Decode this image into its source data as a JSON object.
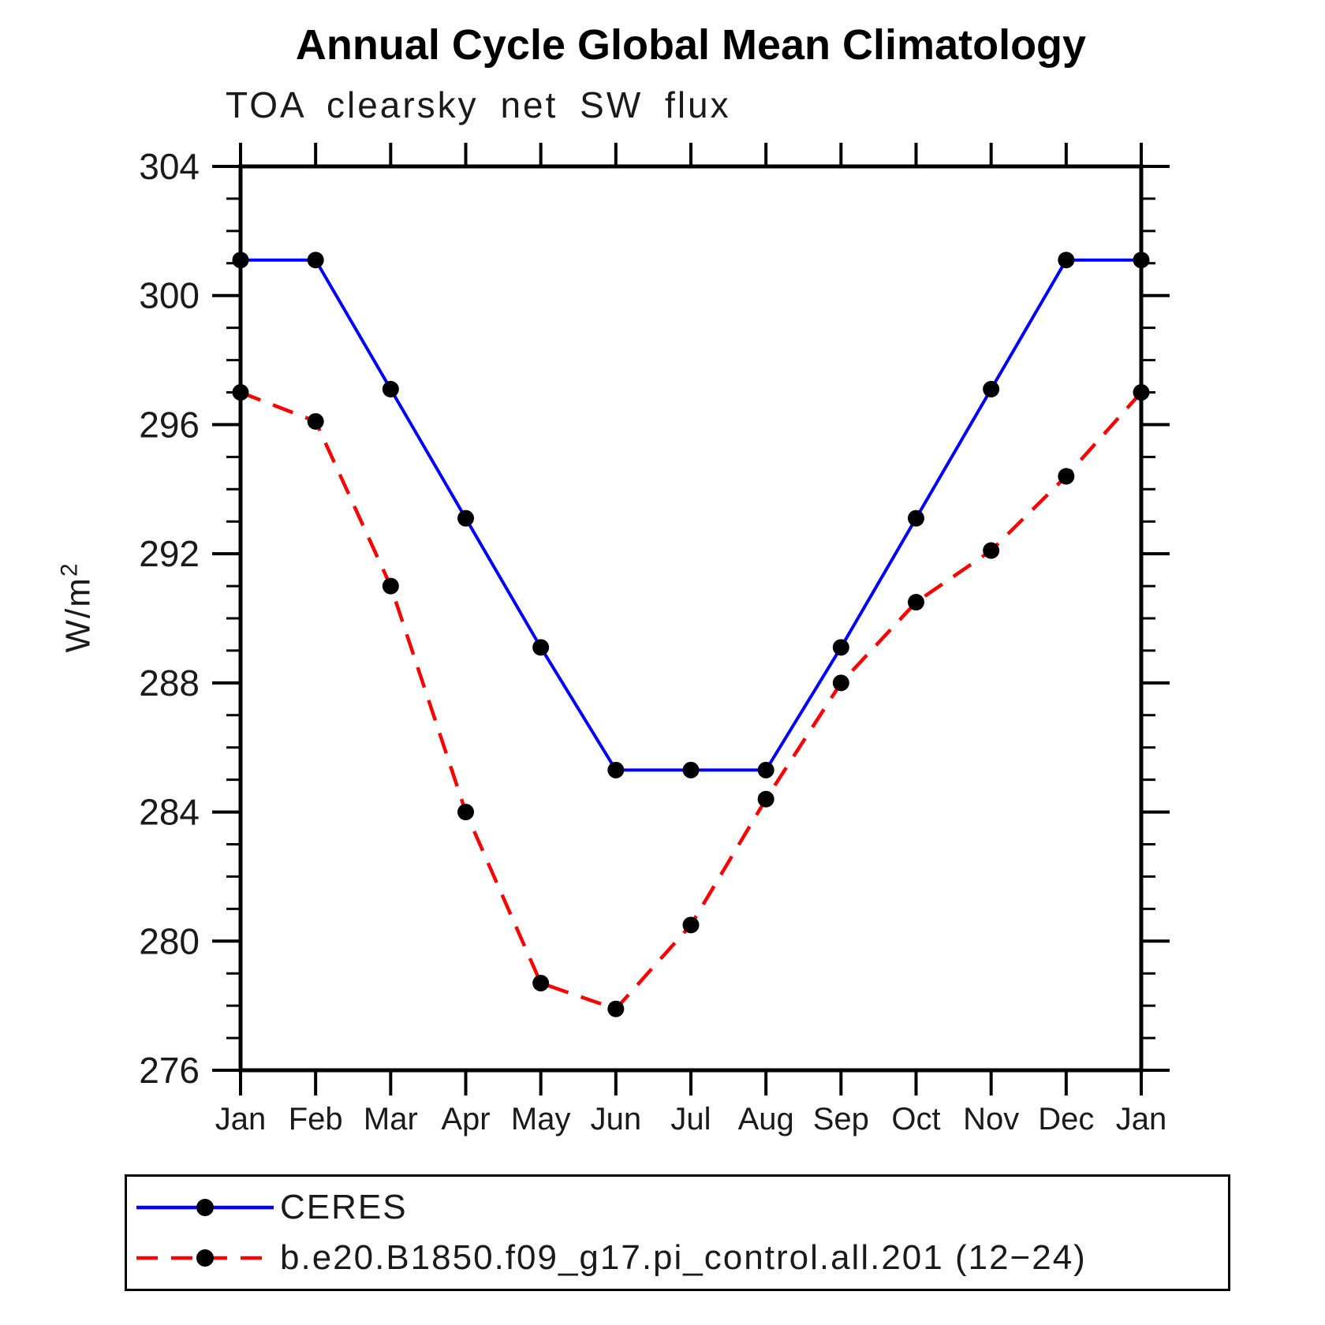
{
  "page": {
    "background": "#ffffff"
  },
  "chart_data": {
    "type": "line",
    "title": "Annual Cycle Global Mean Climatology",
    "subtitle": "TOA clearsky net SW flux",
    "ylabel": "W/m²",
    "ylabel_base": "W/m",
    "ylabel_exponent": "2",
    "xlabel": "",
    "x_categories": [
      "Jan",
      "Feb",
      "Mar",
      "Apr",
      "May",
      "Jun",
      "Jul",
      "Aug",
      "Sep",
      "Oct",
      "Nov",
      "Dec",
      "Jan"
    ],
    "ylim": [
      276,
      304
    ],
    "yticks": [
      276,
      280,
      284,
      288,
      292,
      296,
      300,
      304
    ],
    "ytick_minor_step": 1,
    "grid": false,
    "legend_position": "bottom",
    "axis_color": "#000000",
    "marker_color": "#000000",
    "series": [
      {
        "name": "CERES",
        "color": "#0000ff",
        "line_style": "solid",
        "marker": "circle",
        "values": [
          301.1,
          301.1,
          297.1,
          293.1,
          289.1,
          285.3,
          285.3,
          285.3,
          289.1,
          293.1,
          297.1,
          301.1,
          301.1
        ]
      },
      {
        "name": "b.e20.B1850.f09_g17.pi_control.all.201 (12−24)",
        "color": "#ff0000",
        "line_style": "dashed",
        "marker": "circle",
        "values": [
          297.0,
          296.1,
          291.0,
          284.0,
          278.7,
          277.9,
          280.5,
          284.4,
          288.0,
          290.5,
          292.1,
          294.4,
          297.0
        ]
      }
    ]
  }
}
